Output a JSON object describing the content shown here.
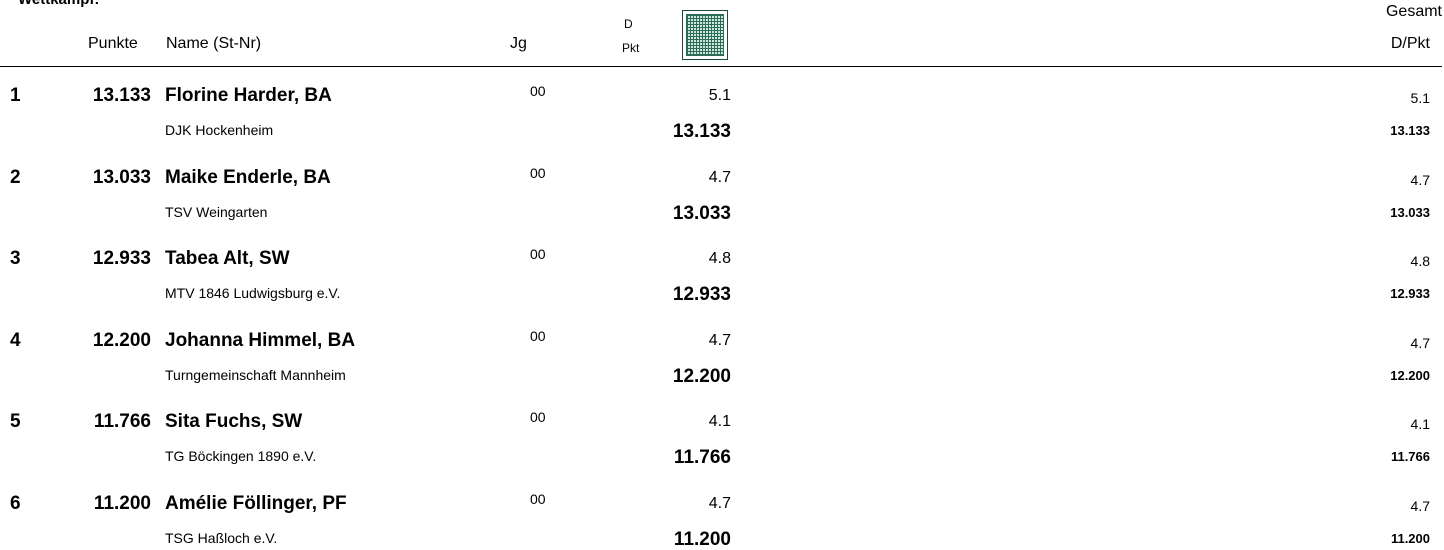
{
  "header": {
    "title": "Wettkampf:",
    "col_points": "Punkte",
    "col_name": "Name (St-Nr)",
    "col_year": "Jg",
    "col_d": "D",
    "col_pkt": "Pkt",
    "col_total": "Gesamt",
    "col_total_sub": "D/Pkt"
  },
  "rows": [
    {
      "rank": "1",
      "points": "13.133",
      "name": "Florine Harder, BA",
      "club": "DJK Hockenheim",
      "year": "00",
      "d": "5.1",
      "pkt": "13.133",
      "total_d": "5.1",
      "total_pkt": "13.133"
    },
    {
      "rank": "2",
      "points": "13.033",
      "name": "Maike Enderle, BA",
      "club": "TSV Weingarten",
      "year": "00",
      "d": "4.7",
      "pkt": "13.033",
      "total_d": "4.7",
      "total_pkt": "13.033"
    },
    {
      "rank": "3",
      "points": "12.933",
      "name": "Tabea Alt, SW",
      "club": "MTV 1846 Ludwigsburg e.V.",
      "year": "00",
      "d": "4.8",
      "pkt": "12.933",
      "total_d": "4.8",
      "total_pkt": "12.933"
    },
    {
      "rank": "4",
      "points": "12.200",
      "name": "Johanna Himmel, BA",
      "club": "Turngemeinschaft Mannheim",
      "year": "00",
      "d": "4.7",
      "pkt": "12.200",
      "total_d": "4.7",
      "total_pkt": "12.200"
    },
    {
      "rank": "5",
      "points": "11.766",
      "name": "Sita Fuchs, SW",
      "club": "TG Böckingen 1890 e.V.",
      "year": "00",
      "d": "4.1",
      "pkt": "11.766",
      "total_d": "4.1",
      "total_pkt": "11.766"
    },
    {
      "rank": "6",
      "points": "11.200",
      "name": "Amélie Föllinger, PF",
      "club": "TSG Haßloch e.V.",
      "year": "00",
      "d": "4.7",
      "pkt": "11.200",
      "total_d": "4.7",
      "total_pkt": "11.200"
    }
  ]
}
